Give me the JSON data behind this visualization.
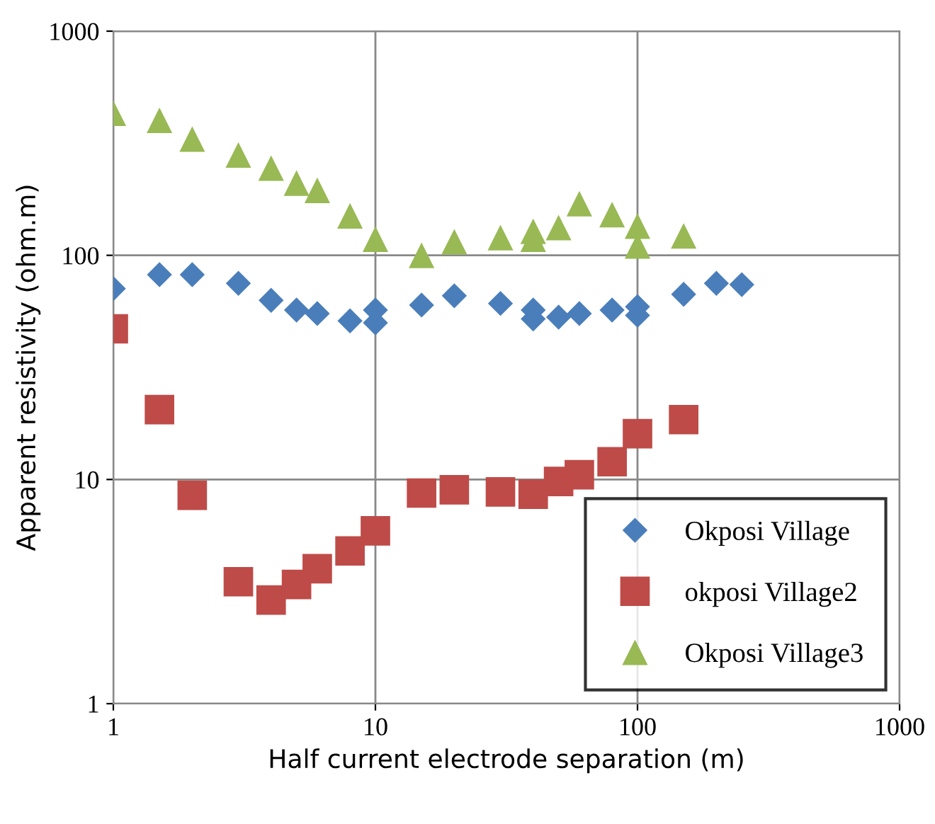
{
  "chart_data": {
    "type": "scatter",
    "xlabel": "Half current electrode separation (m)",
    "ylabel": "Apparent resistivity (ohm.m)",
    "log": "xy",
    "xlim": [
      1,
      1000
    ],
    "ylim": [
      1,
      1000
    ],
    "xticks": [
      1,
      10,
      100,
      1000
    ],
    "yticks": [
      1,
      10,
      100,
      1000
    ],
    "grid": true,
    "legend": "bottom right",
    "series": [
      {
        "name": "Okposi Village",
        "color": "#4a7ebb",
        "marker": "diamond",
        "x": [
          1,
          1.5,
          2,
          3,
          4,
          5,
          6,
          8,
          10,
          10,
          15,
          20,
          30,
          40,
          40,
          50,
          60,
          80,
          100,
          100,
          150,
          200,
          250
        ],
        "values": [
          71,
          82,
          82,
          75,
          63,
          57,
          55,
          51,
          50,
          57,
          60,
          66,
          61,
          52,
          57,
          53,
          55,
          57,
          54,
          59,
          67,
          75,
          74
        ]
      },
      {
        "name": "okposi Village2",
        "color": "#be4b48",
        "marker": "square",
        "x": [
          1,
          1.5,
          2,
          3,
          4,
          5,
          6,
          8,
          10,
          15,
          20,
          30,
          40,
          50,
          60,
          80,
          100,
          150
        ],
        "values": [
          47,
          20.5,
          8.5,
          3.5,
          2.9,
          3.4,
          4.0,
          4.8,
          5.9,
          8.7,
          9,
          8.8,
          8.6,
          9.8,
          10.5,
          12,
          16,
          18.5
        ]
      },
      {
        "name": "Okposi Village3",
        "color": "#98b954",
        "marker": "triangle",
        "x": [
          1,
          1.5,
          2,
          3,
          4,
          5,
          6,
          8,
          10,
          15,
          20,
          30,
          40,
          40,
          50,
          60,
          80,
          100,
          100,
          150
        ],
        "values": [
          430,
          400,
          330,
          280,
          245,
          210,
          195,
          150,
          118,
          100,
          115,
          120,
          118,
          128,
          133,
          170,
          152,
          135,
          110,
          122
        ]
      }
    ]
  }
}
